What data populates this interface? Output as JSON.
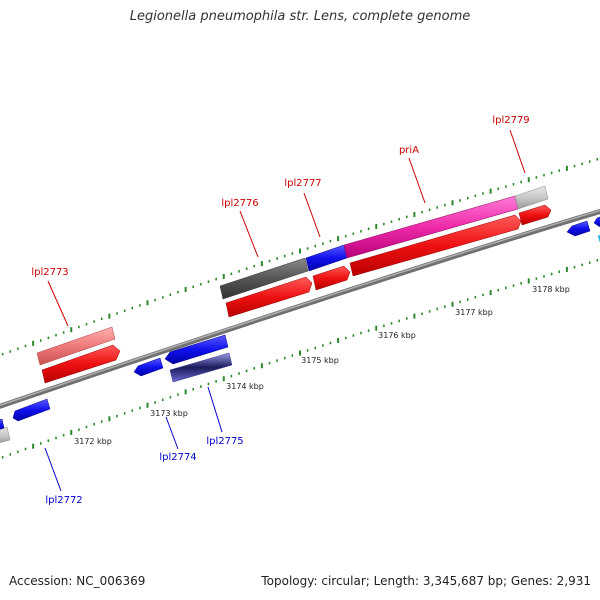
{
  "title": "Legionella pneumophila str. Lens, complete genome",
  "footer": {
    "accession": "Accession: NC_006369",
    "stats": "Topology: circular; Length: 3,345,687 bp; Genes: 2,931"
  },
  "colors": {
    "forward_cds": "#e8141d",
    "reverse_cds": "#1414e8",
    "backbone": "#888888",
    "gc_ticks": "#2a8a2a",
    "label_forward": "#cc0000",
    "label_reverse": "#0000cc"
  },
  "scale_labels": [
    "3172 kbp",
    "3173 kbp",
    "3174 kbp",
    "3175 kbp",
    "3176 kbp",
    "3177 kbp",
    "3178 kbp"
  ],
  "gene_labels": [
    {
      "name": "lpl2772",
      "text": "lpl2772",
      "strand": "reverse"
    },
    {
      "name": "lpl2773",
      "text": "lpl2773",
      "strand": "forward"
    },
    {
      "name": "lpl2774",
      "text": "lpl2774",
      "strand": "reverse"
    },
    {
      "name": "lpl2775",
      "text": "lpl2775",
      "strand": "reverse"
    },
    {
      "name": "lpl2776",
      "text": "lpl2776",
      "strand": "forward"
    },
    {
      "name": "lpl2777",
      "text": "lpl2777",
      "strand": "forward"
    },
    {
      "name": "priA",
      "text": "priA",
      "strand": "forward"
    },
    {
      "name": "lpl2779",
      "text": "lpl2779",
      "strand": "forward"
    }
  ]
}
